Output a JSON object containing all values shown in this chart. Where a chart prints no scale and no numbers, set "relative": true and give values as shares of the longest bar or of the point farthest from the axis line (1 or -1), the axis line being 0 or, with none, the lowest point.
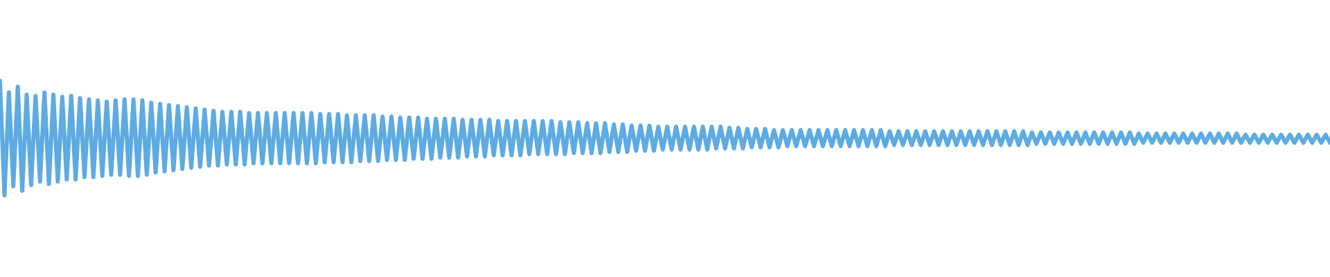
{
  "chart_data": {
    "type": "line",
    "relative": true,
    "color": "#5dabe2",
    "categories": [
      null,
      null,
      null,
      null,
      null,
      null,
      null,
      null,
      null,
      null,
      null,
      null,
      null,
      null,
      null,
      null,
      null,
      null,
      null,
      null,
      null,
      null,
      null,
      null,
      null,
      null,
      null,
      null,
      null,
      null,
      null,
      null,
      null,
      null,
      null,
      null,
      null,
      null,
      null,
      null,
      null,
      null,
      null,
      null,
      null,
      null,
      null,
      null,
      null,
      null,
      null,
      null,
      null,
      null,
      null,
      null,
      null,
      null,
      null,
      null,
      null,
      null,
      null,
      null,
      null,
      null,
      null,
      null,
      null,
      null,
      null,
      null,
      null,
      null,
      null,
      null,
      null,
      null,
      null,
      null,
      null,
      null,
      null,
      null,
      null,
      null,
      null,
      null,
      null,
      null,
      null,
      null,
      null,
      null,
      null,
      null,
      null,
      null,
      null,
      null,
      null,
      null,
      null,
      null,
      null,
      null,
      null,
      null,
      null,
      null,
      null,
      null,
      null,
      null,
      null,
      null,
      null,
      null,
      null,
      null,
      null,
      null,
      null,
      null,
      null,
      null,
      null,
      null,
      null,
      null,
      null,
      null,
      null,
      null,
      null,
      null,
      null,
      null,
      null,
      null,
      null,
      null,
      null,
      null,
      null,
      null,
      null,
      null,
      null,
      null,
      null,
      null,
      null,
      null,
      null,
      null,
      null,
      null,
      null,
      null,
      null,
      null,
      null,
      null,
      null,
      null,
      null,
      null,
      null,
      null,
      null,
      null,
      null,
      null,
      null,
      null,
      null,
      null,
      null,
      null,
      null,
      null,
      null,
      null,
      null,
      null,
      null,
      null,
      null,
      null,
      null,
      null,
      null,
      null,
      null,
      null,
      null,
      null,
      null,
      null,
      null,
      null,
      null,
      null,
      null,
      null,
      null,
      null,
      null,
      null,
      null,
      null,
      null,
      null,
      null,
      null,
      null,
      null,
      null,
      null,
      null,
      null,
      null,
      null,
      null,
      null,
      null,
      null,
      null,
      null,
      null,
      null,
      null,
      null,
      null,
      null,
      null,
      null,
      null,
      null,
      null,
      null,
      null,
      null,
      null,
      null,
      null,
      null,
      null,
      null,
      null,
      null,
      null,
      null,
      null,
      null,
      null,
      null,
      null,
      null,
      null,
      null,
      null,
      null,
      null,
      null,
      null,
      null,
      null,
      null,
      null,
      null,
      null,
      null,
      null,
      null,
      null,
      null,
      null,
      null,
      null,
      null,
      null,
      null,
      null,
      null,
      null,
      null,
      null,
      null,
      null,
      null,
      null,
      null,
      null,
      null,
      null,
      null,
      null,
      null
    ],
    "values": [
      1.0,
      0.0,
      0.9,
      0.08,
      0.95,
      0.04,
      0.88,
      0.09,
      0.87,
      0.12,
      0.9,
      0.1,
      0.88,
      0.12,
      0.86,
      0.14,
      0.87,
      0.14,
      0.85,
      0.16,
      0.84,
      0.16,
      0.83,
      0.17,
      0.82,
      0.18,
      0.83,
      0.18,
      0.84,
      0.17,
      0.84,
      0.17,
      0.83,
      0.18,
      0.81,
      0.2,
      0.8,
      0.21,
      0.79,
      0.22,
      0.78,
      0.23,
      0.77,
      0.24,
      0.76,
      0.25,
      0.75,
      0.26,
      0.74,
      0.26,
      0.73,
      0.27,
      0.73,
      0.27,
      0.73,
      0.27,
      0.72,
      0.28,
      0.72,
      0.28,
      0.72,
      0.28,
      0.72,
      0.28,
      0.72,
      0.28,
      0.72,
      0.28,
      0.72,
      0.28,
      0.72,
      0.28,
      0.71,
      0.29,
      0.71,
      0.29,
      0.71,
      0.29,
      0.7,
      0.29,
      0.7,
      0.3,
      0.7,
      0.3,
      0.7,
      0.3,
      0.69,
      0.31,
      0.69,
      0.31,
      0.68,
      0.31,
      0.68,
      0.32,
      0.68,
      0.32,
      0.67,
      0.32,
      0.67,
      0.33,
      0.67,
      0.33,
      0.67,
      0.33,
      0.66,
      0.34,
      0.66,
      0.34,
      0.66,
      0.34,
      0.66,
      0.35,
      0.65,
      0.35,
      0.65,
      0.35,
      0.65,
      0.35,
      0.65,
      0.36,
      0.65,
      0.36,
      0.65,
      0.36,
      0.65,
      0.36,
      0.64,
      0.36,
      0.64,
      0.37,
      0.64,
      0.37,
      0.63,
      0.37,
      0.63,
      0.37,
      0.63,
      0.38,
      0.62,
      0.38,
      0.62,
      0.38,
      0.61,
      0.39,
      0.61,
      0.39,
      0.61,
      0.39,
      0.6,
      0.4,
      0.6,
      0.4,
      0.6,
      0.4,
      0.6,
      0.4,
      0.6,
      0.4,
      0.6,
      0.4,
      0.6,
      0.41,
      0.6,
      0.41,
      0.59,
      0.41,
      0.59,
      0.41,
      0.58,
      0.42,
      0.58,
      0.42,
      0.58,
      0.42,
      0.57,
      0.42,
      0.57,
      0.43,
      0.57,
      0.43,
      0.57,
      0.43,
      0.57,
      0.43,
      0.57,
      0.43,
      0.57,
      0.43,
      0.57,
      0.43,
      0.57,
      0.43,
      0.57,
      0.43,
      0.57,
      0.43,
      0.57,
      0.43,
      0.57,
      0.43,
      0.56,
      0.44,
      0.56,
      0.44,
      0.56,
      0.44,
      0.56,
      0.44,
      0.56,
      0.44,
      0.56,
      0.44,
      0.56,
      0.44,
      0.56,
      0.44,
      0.56,
      0.44,
      0.56,
      0.44,
      0.56,
      0.44,
      0.56,
      0.44,
      0.56,
      0.44,
      0.56,
      0.44,
      0.56,
      0.44,
      0.56,
      0.44,
      0.55,
      0.45,
      0.55,
      0.45,
      0.55,
      0.45,
      0.55,
      0.45,
      0.55,
      0.45,
      0.55,
      0.45,
      0.55,
      0.45,
      0.55,
      0.45,
      0.55,
      0.45,
      0.55,
      0.45,
      0.55,
      0.45,
      0.55,
      0.45,
      0.54,
      0.46,
      0.54,
      0.46,
      0.54,
      0.46,
      0.54,
      0.46,
      0.54,
      0.46,
      0.54,
      0.46,
      0.54,
      0.46,
      0.54,
      0.46,
      0.54,
      0.46,
      0.54,
      0.46,
      0.54,
      0.46,
      0.54,
      0.46,
      0.53,
      0.46,
      0.53,
      0.46,
      0.53,
      0.46,
      0.53,
      0.46,
      0.53,
      0.46,
      0.53,
      0.46,
      0.53,
      0.46,
      0.53,
      0.46,
      0.53,
      0.46,
      0.53,
      0.46
    ]
  }
}
